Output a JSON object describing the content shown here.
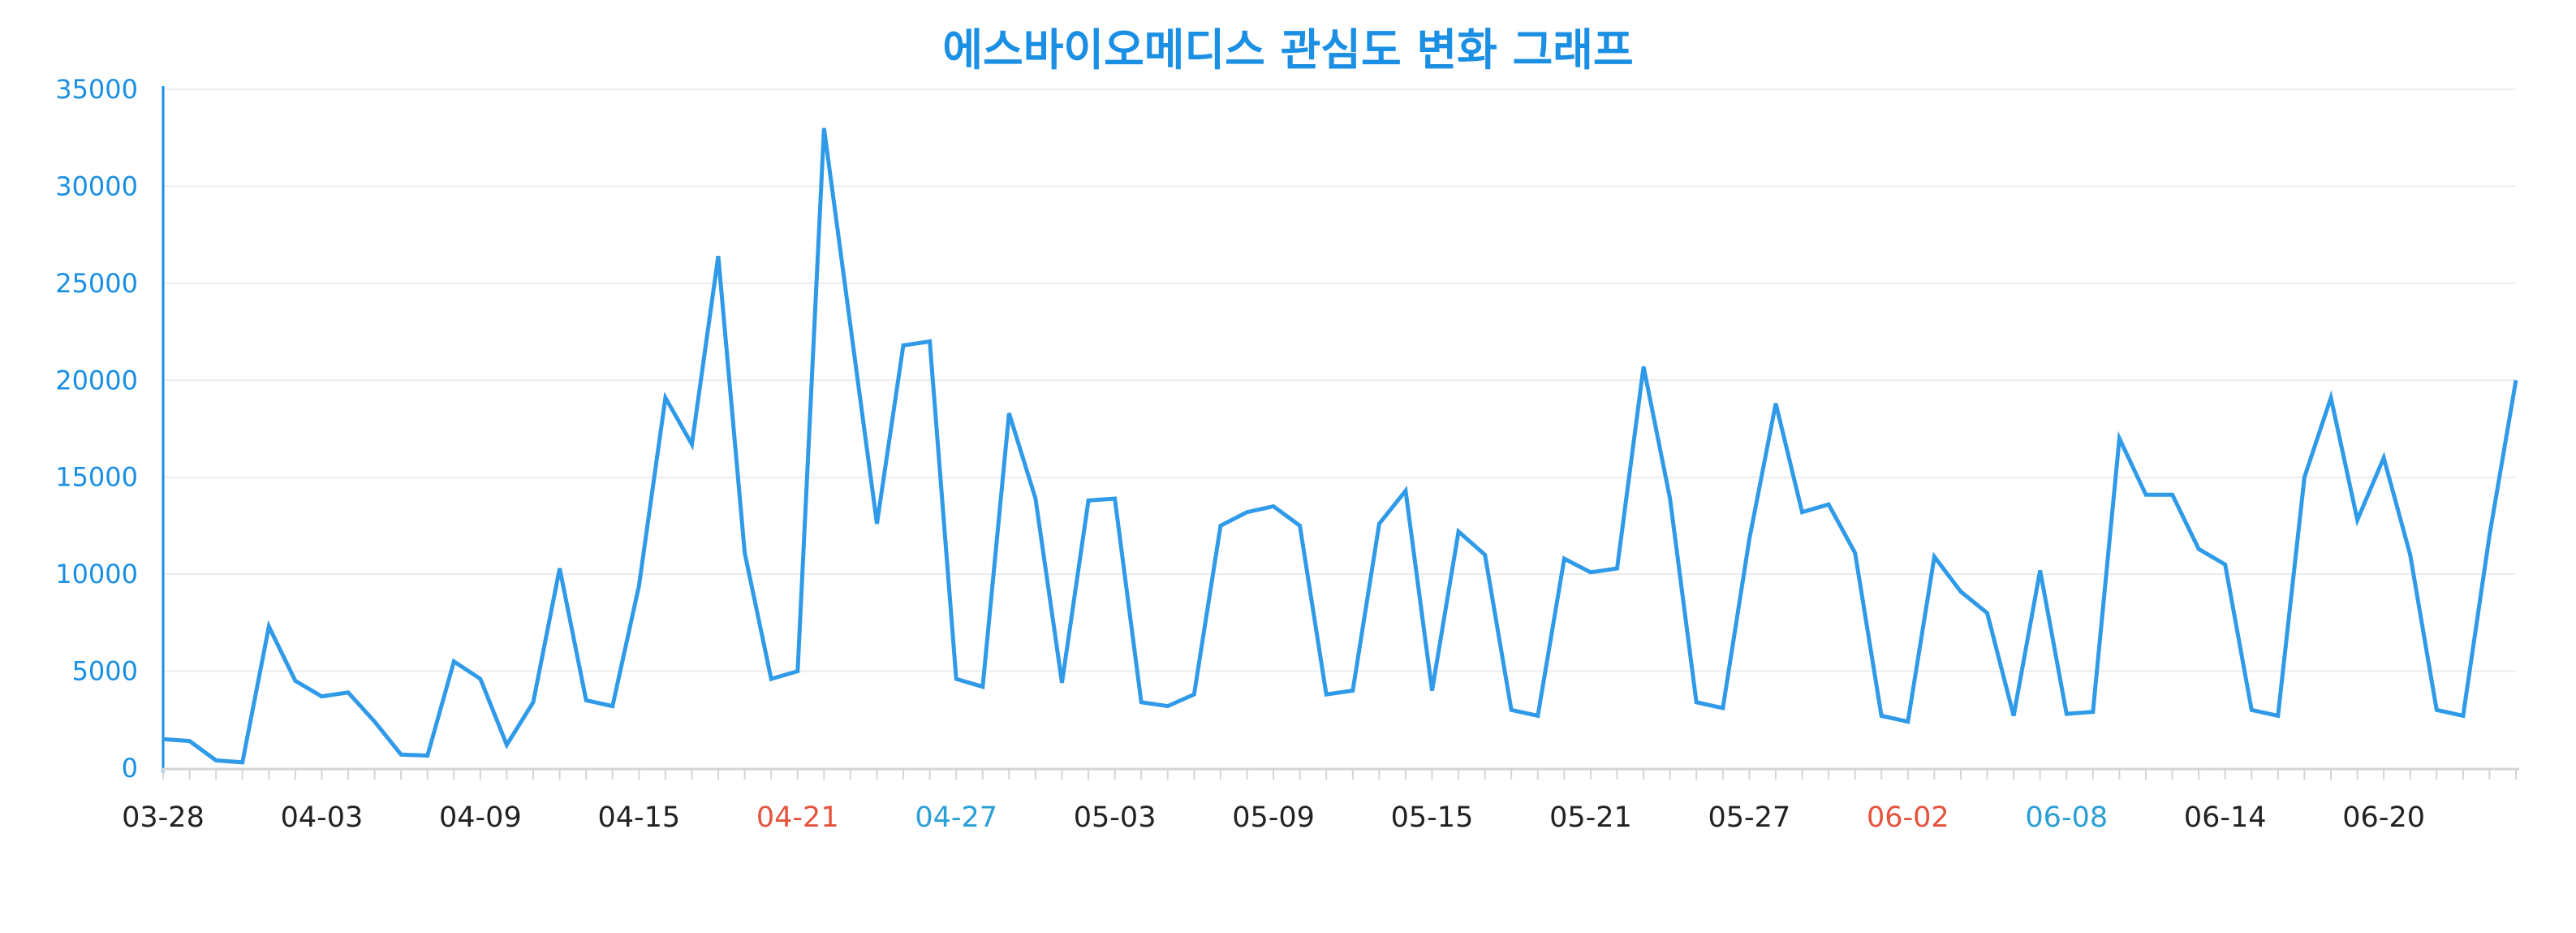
{
  "chart_data": {
    "type": "line",
    "title": "에스바이오메디스 관심도 변화 그래프",
    "xlabel": "",
    "ylabel": "",
    "ylim": [
      0,
      35000
    ],
    "yticks": [
      "0",
      "5000",
      "10000",
      "15000",
      "20000",
      "25000",
      "30000",
      "35000"
    ],
    "grid": true,
    "legend": "none",
    "x_start": "03-28",
    "x_end": "06-25",
    "x_labels": [
      {
        "label": "03-28",
        "index": 0,
        "color": "#222222"
      },
      {
        "label": "04-03",
        "index": 6,
        "color": "#222222"
      },
      {
        "label": "04-09",
        "index": 12,
        "color": "#222222"
      },
      {
        "label": "04-15",
        "index": 18,
        "color": "#222222"
      },
      {
        "label": "04-21",
        "index": 24,
        "color": "#e5533d"
      },
      {
        "label": "04-27",
        "index": 30,
        "color": "#2a9fd6"
      },
      {
        "label": "05-03",
        "index": 36,
        "color": "#222222"
      },
      {
        "label": "05-09",
        "index": 42,
        "color": "#222222"
      },
      {
        "label": "05-15",
        "index": 48,
        "color": "#222222"
      },
      {
        "label": "05-21",
        "index": 54,
        "color": "#222222"
      },
      {
        "label": "05-27",
        "index": 60,
        "color": "#222222"
      },
      {
        "label": "06-02",
        "index": 66,
        "color": "#e5533d"
      },
      {
        "label": "06-08",
        "index": 72,
        "color": "#2a9fd6"
      },
      {
        "label": "06-14",
        "index": 78,
        "color": "#222222"
      },
      {
        "label": "06-20",
        "index": 84,
        "color": "#222222"
      }
    ],
    "series": [
      {
        "color": "#2f9ae8",
        "values": [
          1500,
          1400,
          400,
          300,
          7300,
          4500,
          3700,
          3900,
          2400,
          700,
          650,
          5500,
          4600,
          1200,
          3400,
          10300,
          3500,
          3200,
          9400,
          19100,
          16700,
          26400,
          11100,
          4600,
          5000,
          33000,
          22800,
          12600,
          21800,
          22000,
          4600,
          4200,
          18300,
          13900,
          4400,
          13800,
          13900,
          3400,
          3200,
          3800,
          12500,
          13200,
          13500,
          12500,
          3800,
          4000,
          12600,
          14300,
          4000,
          12200,
          11000,
          3000,
          2700,
          10800,
          10100,
          10300,
          20700,
          13900,
          3400,
          3100,
          11800,
          18800,
          13200,
          13600,
          11100,
          2700,
          2400,
          10900,
          9100,
          8000,
          2700,
          10200,
          2800,
          2900,
          17000,
          14100,
          14100,
          11300,
          10500,
          3000,
          2700,
          15000,
          19100,
          12800,
          16000,
          11000,
          3000,
          2700,
          12000,
          20000
        ]
      }
    ]
  },
  "colors": {
    "title": "#1a8fe3",
    "axis": "#1a8fe3",
    "ytick": "#1a8fe3",
    "grid": "#ececec",
    "xaxis": "#d4d4d4"
  }
}
